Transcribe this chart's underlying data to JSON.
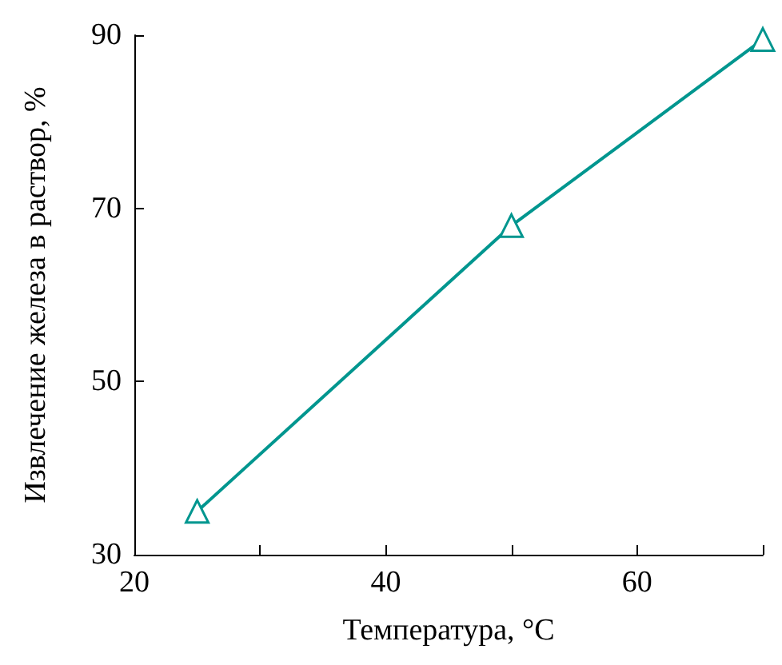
{
  "chart_data": {
    "type": "line",
    "xlabel": "Температура, °C",
    "ylabel": "Извлечение железа в раствор, %",
    "x": [
      25,
      50,
      70
    ],
    "series": [
      {
        "color": "#00968f",
        "values": [
          35,
          68,
          89.5
        ]
      }
    ],
    "xlim": [
      20,
      70
    ],
    "xticks": [
      20,
      {
        "value": 30,
        "label": null
      },
      40,
      {
        "value": 50,
        "label": null
      },
      60,
      {
        "value": 70,
        "label": null
      }
    ],
    "ylim": [
      30,
      90
    ],
    "yticks": [
      30,
      50,
      70,
      90
    ],
    "grid": false,
    "marker": "triangle",
    "line_style": "solid"
  }
}
